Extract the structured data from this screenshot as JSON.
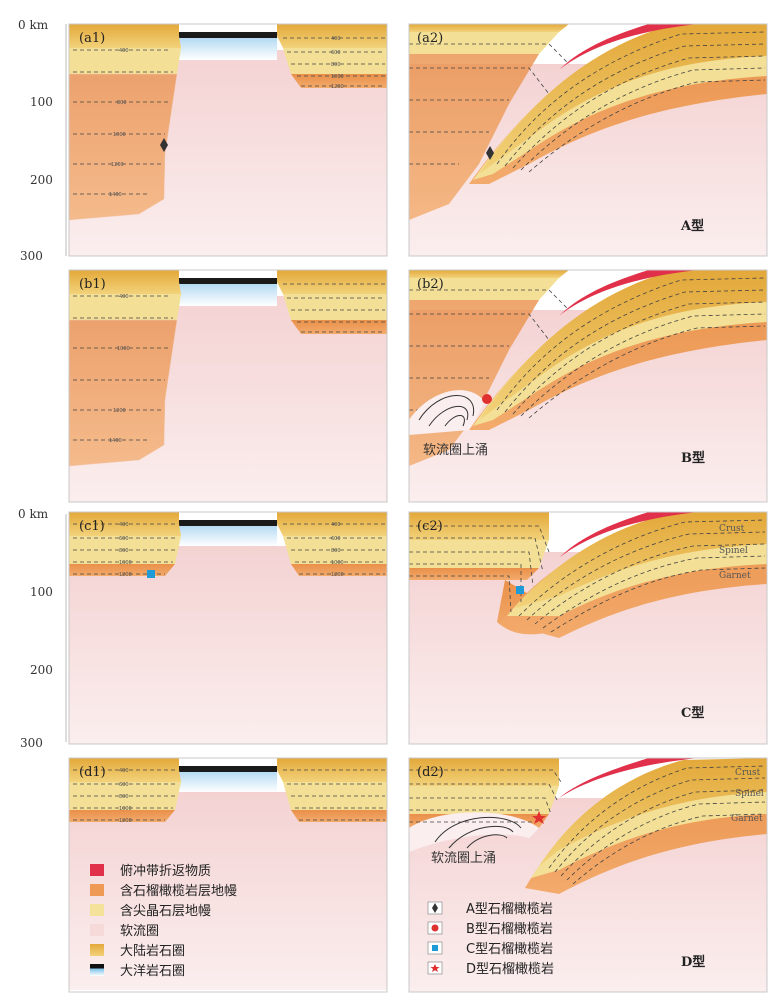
{
  "axes": {
    "upper": {
      "t0": "0 km",
      "t100": "100",
      "t200": "200",
      "t300": "300"
    },
    "lower": {
      "t0": "0 km",
      "t100": "100",
      "t200": "200",
      "t300": "300"
    }
  },
  "panels": {
    "a1": "(a1)",
    "a2": "(a2)",
    "b1": "(b1)",
    "b2": "(b2)",
    "c1": "(c1)",
    "c2": "(c2)",
    "d1": "(d1)",
    "d2": "(d2)"
  },
  "types": {
    "A": "A型",
    "B": "B型",
    "C": "C型",
    "D": "D型"
  },
  "isotherms": {
    "t400": "400",
    "t600": "600",
    "t800": "800",
    "t1000": "1000",
    "t1200": "1200",
    "t1400": "1400"
  },
  "zones": {
    "crust": "Crust",
    "spinel": "Spinel",
    "garnet": "Garnet"
  },
  "upwelling": "软流圈上涌",
  "legend_left": [
    {
      "label": "俯冲带折返物质",
      "color": "#e0304a"
    },
    {
      "label": "含石榴橄榄岩层地幔",
      "color": "#ee9a55"
    },
    {
      "label": "含尖晶石层地幔",
      "color": "#f4e29a"
    },
    {
      "label": "软流圈",
      "color": "#f6dada"
    },
    {
      "label": "大陆岩石圈",
      "color": "#e9b84a"
    },
    {
      "label": "大洋岩石圈",
      "color": "#1a1a1a"
    }
  ],
  "legend_right": [
    {
      "label": "A型石榴橄榄岩",
      "symbol": "diamond",
      "color": "#333333"
    },
    {
      "label": "B型石榴橄榄岩",
      "symbol": "circle",
      "color": "#e03030"
    },
    {
      "label": "C型石榴橄榄岩",
      "symbol": "square",
      "color": "#1e9ad6"
    },
    {
      "label": "D型石榴橄榄岩",
      "symbol": "star",
      "color": "#e03030"
    }
  ]
}
